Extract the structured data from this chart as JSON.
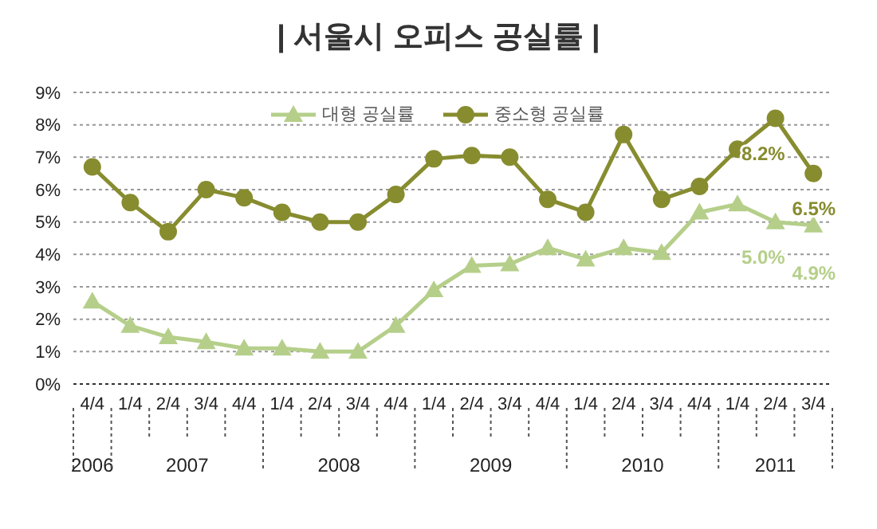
{
  "chart_data": {
    "type": "line",
    "title": "| 서울시 오피스 공실률 |",
    "categories": [
      "4/4",
      "1/4",
      "2/4",
      "3/4",
      "4/4",
      "1/4",
      "2/4",
      "3/4",
      "4/4",
      "1/4",
      "2/4",
      "3/4",
      "4/4",
      "1/4",
      "2/4",
      "3/4",
      "4/4",
      "1/4",
      "2/4",
      "3/4"
    ],
    "annotations": [
      "2006",
      "2007",
      "2008",
      "2009",
      "2010",
      "2011"
    ],
    "series": [
      {
        "name": "대형 공실률",
        "color": "#b5cf8a",
        "marker": "triangle",
        "values": [
          2.55,
          1.8,
          1.45,
          1.3,
          1.1,
          1.1,
          1.0,
          1.0,
          1.8,
          2.9,
          3.65,
          3.7,
          4.2,
          3.85,
          4.2,
          4.05,
          5.3,
          5.55,
          5.0,
          4.9
        ],
        "value_labels": [
          null,
          null,
          null,
          null,
          null,
          null,
          null,
          null,
          null,
          null,
          null,
          null,
          null,
          null,
          null,
          null,
          null,
          null,
          "5.0%",
          "4.9%"
        ]
      },
      {
        "name": "중소형 공실률",
        "color": "#878c2f",
        "marker": "circle",
        "values": [
          6.7,
          5.6,
          4.7,
          6.0,
          5.75,
          5.3,
          5.0,
          5.0,
          5.85,
          6.95,
          7.05,
          7.0,
          5.7,
          5.3,
          7.7,
          5.7,
          6.1,
          7.25,
          8.2,
          6.5
        ],
        "value_labels": [
          null,
          null,
          null,
          null,
          null,
          null,
          null,
          null,
          null,
          null,
          null,
          null,
          null,
          null,
          null,
          null,
          null,
          null,
          "8.2%",
          "6.5%"
        ]
      }
    ],
    "ylim": [
      0,
      9
    ],
    "yticks": [
      {
        "value": 0,
        "label": "0%"
      },
      {
        "value": 1,
        "label": "1%"
      },
      {
        "value": 2,
        "label": "2%"
      },
      {
        "value": 3,
        "label": "3%"
      },
      {
        "value": 4,
        "label": "4%"
      },
      {
        "value": 5,
        "label": "5%"
      },
      {
        "value": 6,
        "label": "6%"
      },
      {
        "value": 7,
        "label": "7%"
      },
      {
        "value": 8,
        "label": "8%"
      },
      {
        "value": 9,
        "label": "9%"
      }
    ],
    "grid": "y",
    "legend": "top",
    "line_style": "solid"
  }
}
